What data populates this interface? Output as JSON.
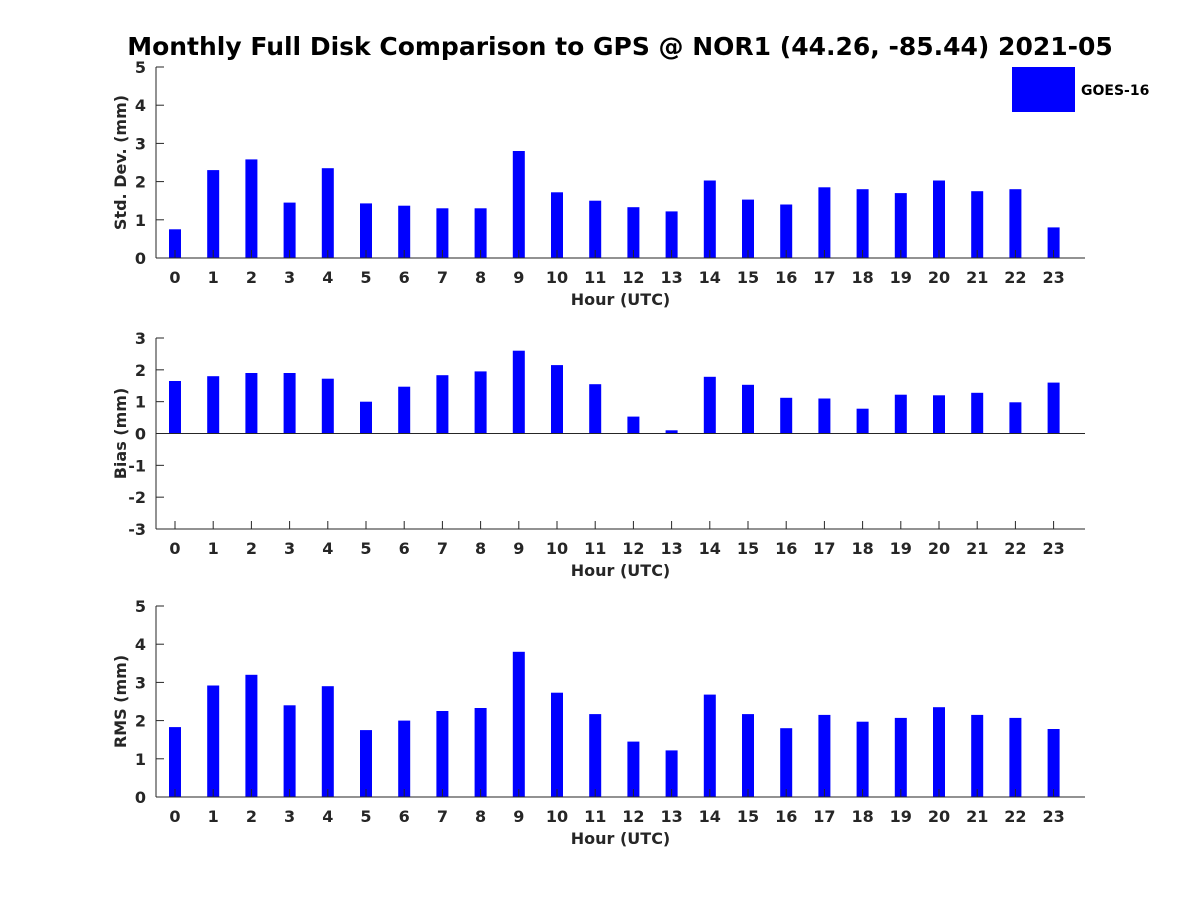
{
  "figure": {
    "title": "Monthly Full Disk Comparison to GPS @ NOR1 (44.26, -85.44) 2021-05",
    "legend": {
      "label": "GOES-16",
      "color": "#0000ff",
      "placement": "top-right"
    },
    "bar_color": "#0000ff"
  },
  "chart_data": [
    {
      "type": "bar",
      "title": "Monthly Full Disk Comparison to GPS @ NOR1 (44.26, -85.44) 2021-05",
      "xlabel": "Hour (UTC)",
      "ylabel": "Std. Dev. (mm)",
      "ylim": [
        0,
        5
      ],
      "yticks": [
        "0",
        "1",
        "2",
        "3",
        "4",
        "5"
      ],
      "categories": [
        "0",
        "1",
        "2",
        "3",
        "4",
        "5",
        "6",
        "7",
        "8",
        "9",
        "10",
        "11",
        "12",
        "13",
        "14",
        "15",
        "16",
        "17",
        "18",
        "19",
        "20",
        "21",
        "22",
        "23"
      ],
      "series": [
        {
          "name": "GOES-16",
          "values": [
            0.75,
            2.3,
            2.58,
            1.45,
            2.35,
            1.43,
            1.37,
            1.3,
            1.3,
            2.8,
            1.72,
            1.5,
            1.33,
            1.22,
            2.03,
            1.53,
            1.4,
            1.85,
            1.8,
            1.7,
            2.03,
            1.75,
            1.8,
            0.8
          ]
        }
      ]
    },
    {
      "type": "bar",
      "xlabel": "Hour (UTC)",
      "ylabel": "Bias (mm)",
      "ylim": [
        -3,
        3
      ],
      "yticks": [
        "-3",
        "-2",
        "-1",
        "0",
        "1",
        "2",
        "3"
      ],
      "categories": [
        "0",
        "1",
        "2",
        "3",
        "4",
        "5",
        "6",
        "7",
        "8",
        "9",
        "10",
        "11",
        "12",
        "13",
        "14",
        "15",
        "16",
        "17",
        "18",
        "19",
        "20",
        "21",
        "22",
        "23"
      ],
      "series": [
        {
          "name": "GOES-16",
          "values": [
            1.65,
            1.8,
            1.9,
            1.9,
            1.72,
            1.0,
            1.47,
            1.83,
            1.95,
            2.6,
            2.15,
            1.55,
            0.53,
            0.1,
            1.78,
            1.53,
            1.12,
            1.1,
            0.78,
            1.22,
            1.2,
            1.28,
            0.98,
            1.6
          ]
        }
      ]
    },
    {
      "type": "bar",
      "xlabel": "Hour (UTC)",
      "ylabel": "RMS (mm)",
      "ylim": [
        0,
        5
      ],
      "yticks": [
        "0",
        "1",
        "2",
        "3",
        "4",
        "5"
      ],
      "categories": [
        "0",
        "1",
        "2",
        "3",
        "4",
        "5",
        "6",
        "7",
        "8",
        "9",
        "10",
        "11",
        "12",
        "13",
        "14",
        "15",
        "16",
        "17",
        "18",
        "19",
        "20",
        "21",
        "22",
        "23"
      ],
      "series": [
        {
          "name": "GOES-16",
          "values": [
            1.83,
            2.92,
            3.2,
            2.4,
            2.9,
            1.75,
            2.0,
            2.25,
            2.33,
            3.8,
            2.73,
            2.17,
            1.45,
            1.22,
            2.68,
            2.17,
            1.8,
            2.15,
            1.97,
            2.07,
            2.35,
            2.15,
            2.07,
            1.78
          ]
        }
      ]
    }
  ]
}
